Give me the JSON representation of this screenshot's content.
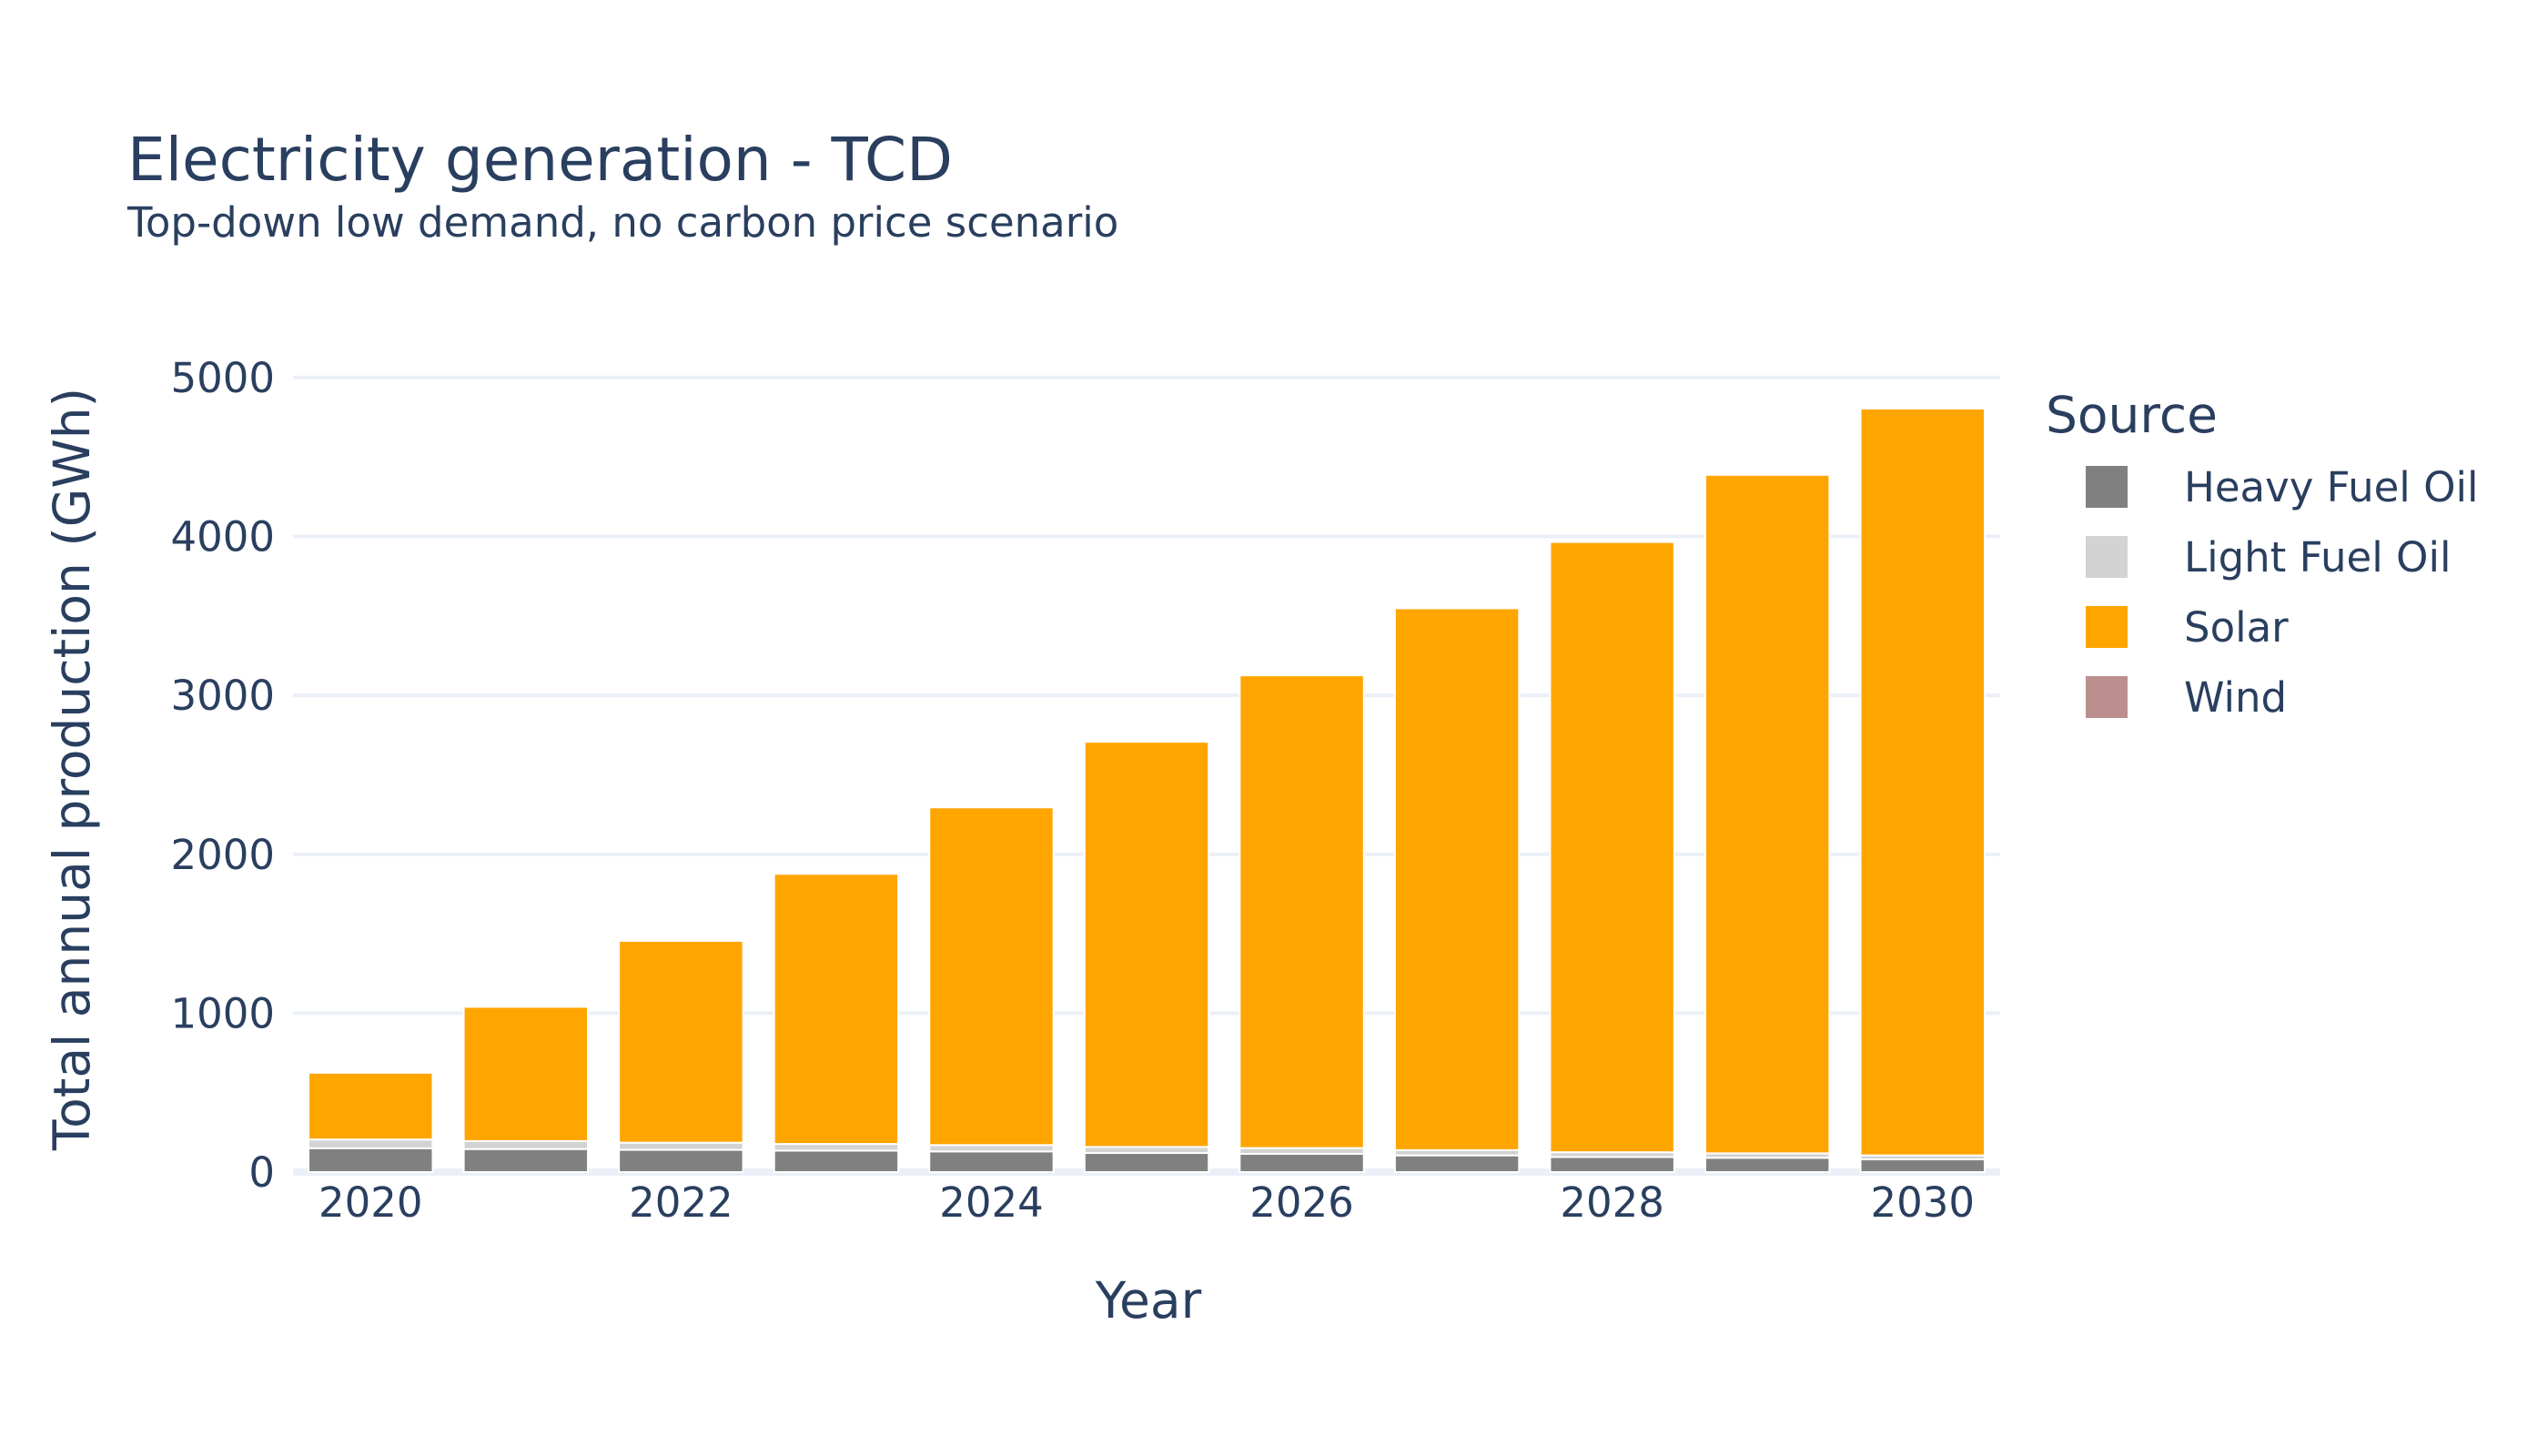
{
  "chart_data": {
    "type": "bar",
    "stacked": true,
    "title": "Electricity generation - TCD",
    "subtitle": "Top-down low demand, no carbon price scenario",
    "xlabel": "Year",
    "ylabel": "Total annual production (GWh)",
    "x": [
      2020,
      2021,
      2022,
      2023,
      2024,
      2025,
      2026,
      2027,
      2028,
      2029,
      2030
    ],
    "x_ticks": [
      "2020",
      "2022",
      "2024",
      "2026",
      "2028",
      "2030"
    ],
    "y_ticks": [
      0,
      1000,
      2000,
      3000,
      4000,
      5000
    ],
    "xlim": [
      2019.5,
      2030.5
    ],
    "ylim": [
      0,
      5200
    ],
    "grid": true,
    "legend": {
      "title": "Source",
      "placement": "right"
    },
    "series": [
      {
        "name": "Heavy Fuel Oil",
        "color": "#808080",
        "values": [
          150,
          145,
          140,
          135,
          130,
          120,
          115,
          105,
          95,
          90,
          80
        ]
      },
      {
        "name": "Light Fuel Oil",
        "color": "#d3d3d3",
        "values": [
          55,
          50,
          45,
          42,
          40,
          38,
          36,
          33,
          30,
          28,
          25
        ]
      },
      {
        "name": "Solar",
        "color": "#ffa500",
        "values": [
          420,
          845,
          1270,
          1700,
          2125,
          2550,
          2975,
          3410,
          3840,
          4270,
          4700
        ]
      },
      {
        "name": "Wind",
        "color": "#bc8f8f",
        "values": [
          0,
          0,
          0,
          0,
          0,
          0,
          0,
          0,
          0,
          0,
          0
        ]
      }
    ]
  }
}
